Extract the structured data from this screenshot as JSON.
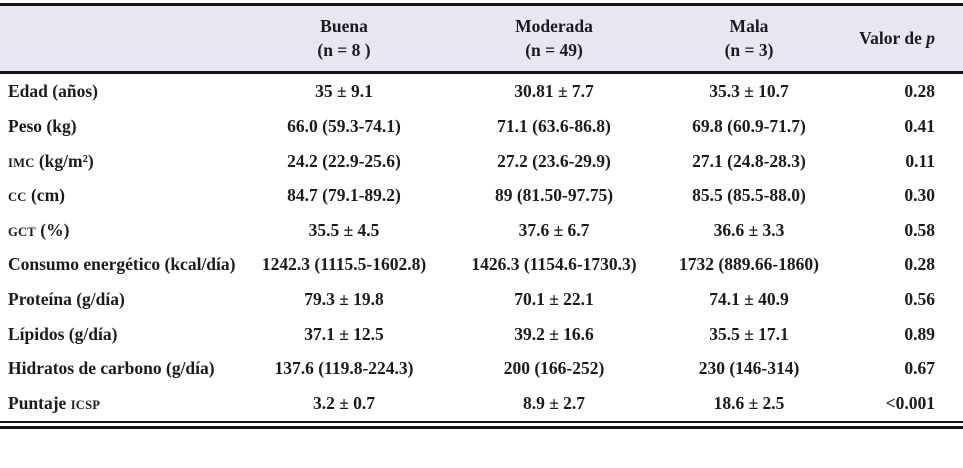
{
  "style": {
    "header_bg": "#e8e6f1",
    "rule_color": "#141414",
    "text_color": "#1b1b1b"
  },
  "table": {
    "header": {
      "empty": "",
      "groups": [
        {
          "line1": "Buena",
          "line2": "(n = 8 )"
        },
        {
          "line1": "Moderada",
          "line2": "(n = 49)"
        },
        {
          "line1": "Mala",
          "line2": "(n = 3)"
        }
      ],
      "p_label_prefix": "Valor de ",
      "p_label_italic": "p"
    },
    "rows": [
      {
        "label_parts": [
          {
            "text": "Edad (años)",
            "sc": false
          }
        ],
        "buena": "35 ± 9.1",
        "moderada": "30.81 ± 7.7",
        "mala": "35.3 ± 10.7",
        "p": "0.28"
      },
      {
        "label_parts": [
          {
            "text": "Peso (kg)",
            "sc": false
          }
        ],
        "buena": "66.0 (59.3-74.1)",
        "moderada": "71.1 (63.6-86.8)",
        "mala": "69.8 (60.9-71.7)",
        "p": "0.41"
      },
      {
        "label_parts": [
          {
            "text": "IMC",
            "sc": true
          },
          {
            "text": " (kg/m²)",
            "sc": false
          }
        ],
        "buena": "24.2 (22.9-25.6)",
        "moderada": "27.2 (23.6-29.9)",
        "mala": "27.1 (24.8-28.3)",
        "p": "0.11"
      },
      {
        "label_parts": [
          {
            "text": "CC",
            "sc": true
          },
          {
            "text": " (cm)",
            "sc": false
          }
        ],
        "buena": "84.7 (79.1-89.2)",
        "moderada": "89 (81.50-97.75)",
        "mala": "85.5 (85.5-88.0)",
        "p": "0.30"
      },
      {
        "label_parts": [
          {
            "text": "GCT",
            "sc": true
          },
          {
            "text": " (%)",
            "sc": false
          }
        ],
        "buena": "35.5 ± 4.5",
        "moderada": "37.6 ± 6.7",
        "mala": "36.6 ± 3.3",
        "p": "0.58"
      },
      {
        "label_parts": [
          {
            "text": "Consumo energético (kcal/día)",
            "sc": false
          }
        ],
        "buena": "1242.3 (1115.5-1602.8)",
        "moderada": "1426.3 (1154.6-1730.3)",
        "mala": "1732 (889.66-1860)",
        "p": "0.28"
      },
      {
        "label_parts": [
          {
            "text": "Proteína (g/día)",
            "sc": false
          }
        ],
        "buena": "79.3 ± 19.8",
        "moderada": "70.1 ± 22.1",
        "mala": "74.1 ± 40.9",
        "p": "0.56"
      },
      {
        "label_parts": [
          {
            "text": "Lípidos (g/día)",
            "sc": false
          }
        ],
        "buena": "37.1 ± 12.5",
        "moderada": "39.2 ± 16.6",
        "mala": "35.5 ± 17.1",
        "p": "0.89"
      },
      {
        "label_parts": [
          {
            "text": "Hidratos de carbono (g/día)",
            "sc": false
          }
        ],
        "buena": "137.6 (119.8-224.3)",
        "moderada": "200 (166-252)",
        "mala": "230 (146-314)",
        "p": "0.67"
      },
      {
        "label_parts": [
          {
            "text": "Puntaje ",
            "sc": false
          },
          {
            "text": "ICSP",
            "sc": true
          }
        ],
        "buena": "3.2 ± 0.7",
        "moderada": "8.9 ± 2.7",
        "mala": "18.6 ± 2.5",
        "p": "<0.001"
      }
    ]
  }
}
